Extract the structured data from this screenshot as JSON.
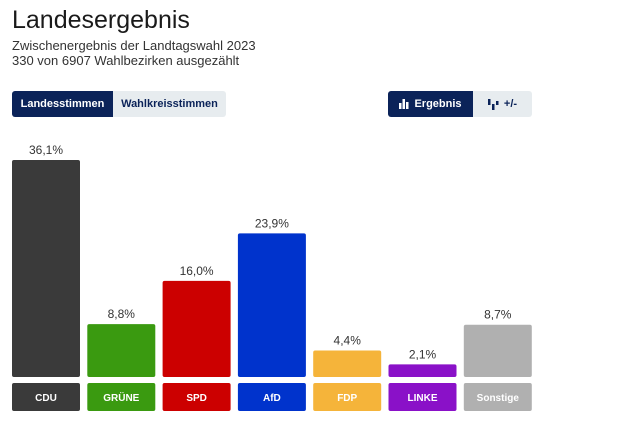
{
  "header": {
    "title": "Landesergebnis",
    "subtitle1": "Zwischenergebnis der Landtagswahl 2023",
    "subtitle2": "330 von 6907 Wahlbezirken ausgezählt"
  },
  "toggles": {
    "left": [
      "Landesstimmen",
      "Wahlkreisstimmen"
    ],
    "right": [
      "Ergebnis",
      "+/-"
    ]
  },
  "chart_data": {
    "type": "bar",
    "title": "",
    "xlabel": "",
    "ylabel": "",
    "ylim": [
      0,
      36.1
    ],
    "categories": [
      "CDU",
      "GRÜNE",
      "SPD",
      "AfD",
      "FDP",
      "LINKE",
      "Sonstige"
    ],
    "values": [
      36.1,
      8.8,
      16.0,
      23.9,
      4.4,
      2.1,
      8.7
    ],
    "value_labels": [
      "36,1%",
      "8,8%",
      "16,0%",
      "23,9%",
      "4,4%",
      "2,1%",
      "8,7%"
    ],
    "colors": [
      "#3a3a3a",
      "#3a9a10",
      "#cc0000",
      "#0033cc",
      "#f5b43a",
      "#8a11c8",
      "#b0b0b0"
    ]
  }
}
